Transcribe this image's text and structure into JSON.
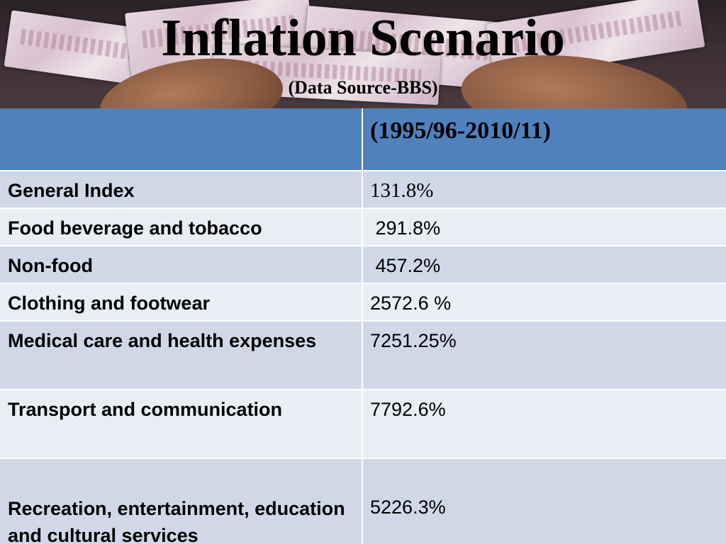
{
  "slide": {
    "title": "Inflation Scenario",
    "subtitle": "(Data Source-BBS)"
  },
  "table": {
    "header": [
      "",
      "(1995/96-2010/11)"
    ],
    "rows": [
      {
        "label": "General Index",
        "value": "131.8%"
      },
      {
        "label": "Food beverage and tobacco",
        "value": " 291.8%"
      },
      {
        "label": "Non-food",
        "value": " 457.2%"
      },
      {
        "label": "Clothing and footwear",
        "value": "2572.6 %"
      },
      {
        "label": "Medical care and health expenses",
        "value": "7251.25%"
      },
      {
        "label": "Transport and communication",
        "value": "7792.6%"
      },
      {
        "label": "Recreation, entertainment, education and cultural services",
        "value": "5226.3%"
      }
    ]
  },
  "colors": {
    "header_blue": "#4f81bd",
    "row_dark": "#d0d8e8",
    "row_light": "#e9edf4"
  }
}
